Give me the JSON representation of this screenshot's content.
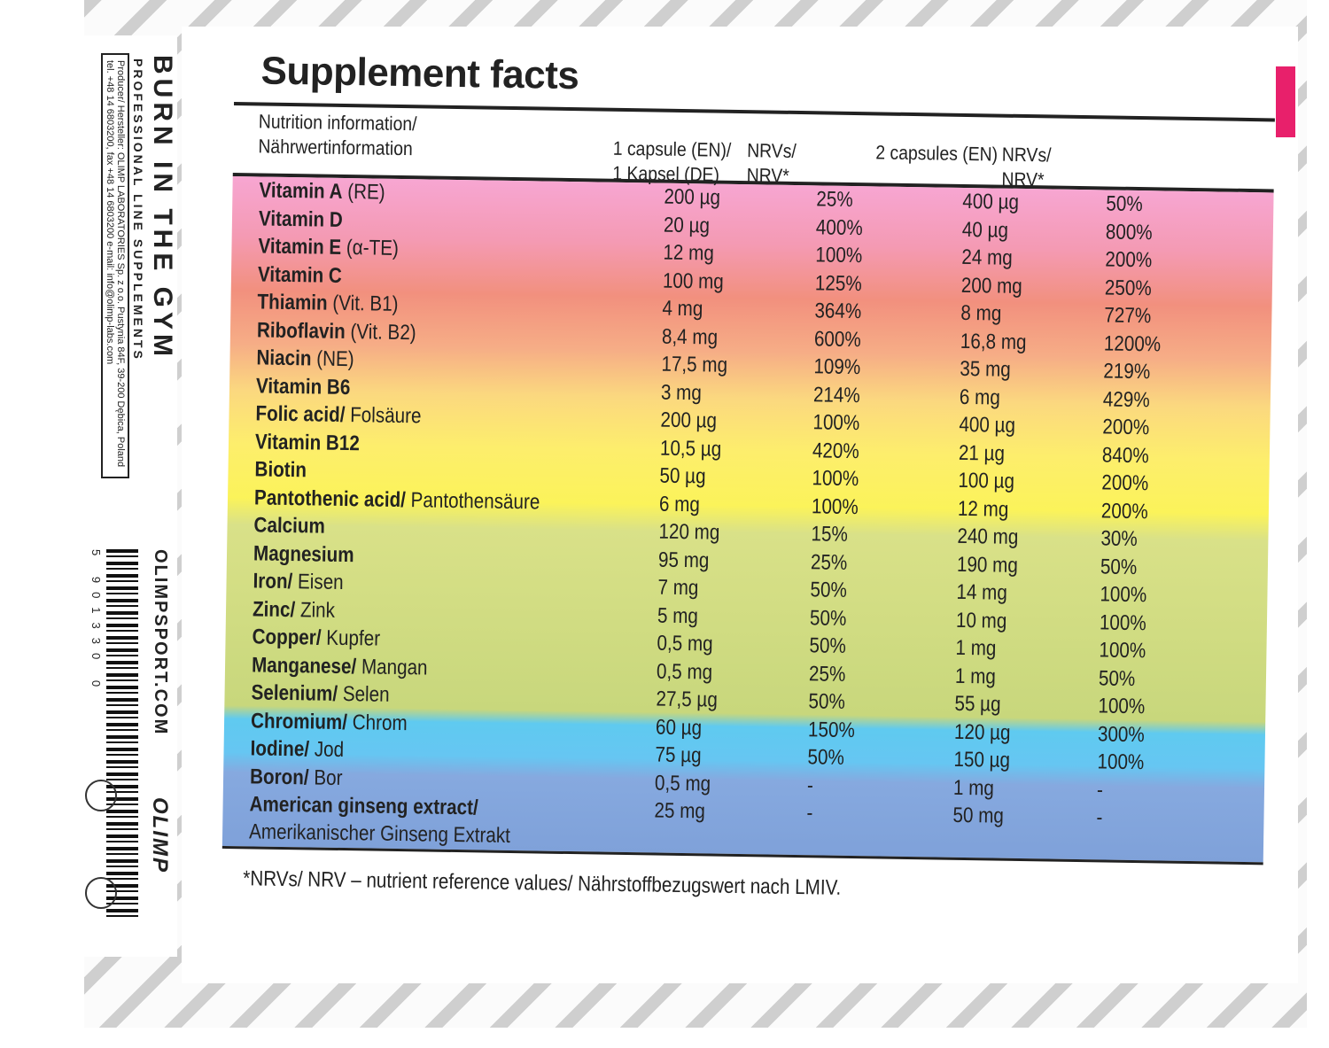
{
  "side_panel": {
    "brand_slogan": "BURN IN THE GYM",
    "line": "PROFESSIONAL LINE SUPPLEMENTS",
    "producer": "Producer/ Hersteller: OLIMP LABORATORIES Sp. z o.o. Pustynia 84F, 39-200 Dębica, Poland tel. +48 14 6803200, fax +48 14 6803200 e-mail: info@olimp-labs.com",
    "website": "OLIMPSPORT.COM",
    "logo": "OLIMP",
    "barcode_number": "5 901330 0"
  },
  "title": "Supplement facts",
  "headers": {
    "col0": [
      "Nutrition information/",
      "Nährwertinformation"
    ],
    "col1": [
      "1 capsule (EN)/",
      "1 Kapsel (DE)"
    ],
    "col2": [
      "NRVs/",
      "NRV*"
    ],
    "col3": [
      "2 capsules (EN)"
    ],
    "col4": [
      "NRVs/",
      "NRV*"
    ]
  },
  "rows": [
    {
      "b": "Vitamin A",
      "r": " (RE)",
      "v": [
        "200 µg",
        "25%",
        "400 µg",
        "50%"
      ]
    },
    {
      "b": "Vitamin D",
      "r": "",
      "v": [
        "20 µg",
        "400%",
        "40 µg",
        "800%"
      ]
    },
    {
      "b": "Vitamin E",
      "r": " (α-TE)",
      "v": [
        "12 mg",
        "100%",
        "24 mg",
        "200%"
      ]
    },
    {
      "b": "Vitamin C",
      "r": "",
      "v": [
        "100 mg",
        "125%",
        "200 mg",
        "250%"
      ]
    },
    {
      "b": "Thiamin",
      "r": " (Vit. B1)",
      "v": [
        "4 mg",
        "364%",
        "8 mg",
        "727%"
      ]
    },
    {
      "b": "Riboflavin",
      "r": " (Vit. B2)",
      "v": [
        "8,4 mg",
        "600%",
        "16,8 mg",
        "1200%"
      ]
    },
    {
      "b": "Niacin",
      "r": " (NE)",
      "v": [
        "17,5 mg",
        "109%",
        "35 mg",
        "219%"
      ]
    },
    {
      "b": "Vitamin B6",
      "r": "",
      "v": [
        "3 mg",
        "214%",
        "6 mg",
        "429%"
      ]
    },
    {
      "b": "Folic acid/",
      "r": " Folsäure",
      "v": [
        "200 µg",
        "100%",
        "400 µg",
        "200%"
      ]
    },
    {
      "b": "Vitamin B12",
      "r": "",
      "v": [
        "10,5 µg",
        "420%",
        "21 µg",
        "840%"
      ]
    },
    {
      "b": "Biotin",
      "r": "",
      "v": [
        "50 µg",
        "100%",
        "100 µg",
        "200%"
      ]
    },
    {
      "b": "Pantothenic acid/",
      "r": " Pantothensäure",
      "v": [
        "6 mg",
        "100%",
        "12 mg",
        "200%"
      ]
    },
    {
      "b": "Calcium",
      "r": "",
      "v": [
        "120 mg",
        "15%",
        "240 mg",
        "30%"
      ]
    },
    {
      "b": "Magnesium",
      "r": "",
      "v": [
        "95 mg",
        "25%",
        "190 mg",
        "50%"
      ]
    },
    {
      "b": "Iron/",
      "r": " Eisen",
      "v": [
        "7 mg",
        "50%",
        "14 mg",
        "100%"
      ]
    },
    {
      "b": "Zinc/",
      "r": " Zink",
      "v": [
        "5 mg",
        "50%",
        "10 mg",
        "100%"
      ]
    },
    {
      "b": "Copper/",
      "r": " Kupfer",
      "v": [
        "0,5 mg",
        "50%",
        "1 mg",
        "100%"
      ]
    },
    {
      "b": "Manganese/",
      "r": " Mangan",
      "v": [
        "0,5 mg",
        "25%",
        "1 mg",
        "50%"
      ]
    },
    {
      "b": "Selenium/",
      "r": " Selen",
      "v": [
        "27,5 µg",
        "50%",
        "55 µg",
        "100%"
      ]
    },
    {
      "b": "Chromium/",
      "r": " Chrom",
      "v": [
        "60 µg",
        "150%",
        "120 µg",
        "300%"
      ]
    },
    {
      "b": "Iodine/",
      "r": " Jod",
      "v": [
        "75 µg",
        "50%",
        "150 µg",
        "100%"
      ]
    },
    {
      "b": "Boron/",
      "r": " Bor",
      "v": [
        "0,5 mg",
        "-",
        "1 mg",
        "-"
      ]
    },
    {
      "b": "American ginseng extract/",
      "r": "Amerikanischer Ginseng Extrakt",
      "v": [
        "25 mg",
        "-",
        "50 mg",
        "-"
      ]
    }
  ],
  "footnote": "*NRVs/ NRV – nutrient reference values/ Nährstoffbezugswert nach LMIV.",
  "colors": {
    "accent_pink": "#e8206b",
    "pink": "#f7a6d2",
    "coral": "#f2907e",
    "yellow": "#fdee6c",
    "green": "#c8d77c",
    "cyan": "#5fcaf0",
    "blue": "#7fa1d9"
  }
}
